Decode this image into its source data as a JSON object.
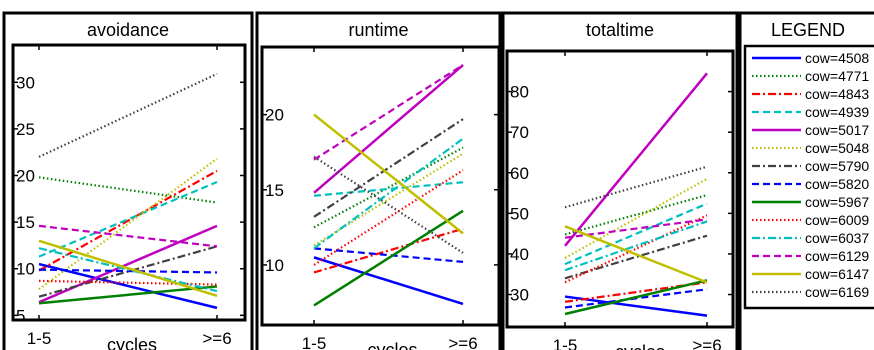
{
  "chart_data": [
    {
      "type": "line",
      "title": "avoidance",
      "xlabel": "cycles",
      "ylabel": "",
      "categories": [
        "1-5",
        ">=6"
      ],
      "ylim": [
        4.5,
        34
      ],
      "yticks": [
        5,
        10,
        15,
        20,
        25,
        30
      ],
      "series": [
        {
          "name": "cow=4508",
          "values": [
            10.5,
            5.8
          ]
        },
        {
          "name": "cow=4771",
          "values": [
            19.8,
            17.1
          ]
        },
        {
          "name": "cow=4843",
          "values": [
            9.8,
            20.5
          ]
        },
        {
          "name": "cow=4939",
          "values": [
            11.3,
            19.3
          ]
        },
        {
          "name": "cow=5017",
          "values": [
            6.4,
            14.6
          ]
        },
        {
          "name": "cow=5048",
          "values": [
            7.8,
            21.8
          ]
        },
        {
          "name": "cow=5790",
          "values": [
            7.0,
            12.4
          ]
        },
        {
          "name": "cow=5820",
          "values": [
            9.9,
            9.6
          ]
        },
        {
          "name": "cow=5967",
          "values": [
            6.3,
            8.1
          ]
        },
        {
          "name": "cow=6009",
          "values": [
            8.7,
            8.3
          ]
        },
        {
          "name": "cow=6037",
          "values": [
            12.2,
            7.6
          ]
        },
        {
          "name": "cow=6129",
          "values": [
            14.6,
            12.4
          ]
        },
        {
          "name": "cow=6147",
          "values": [
            13.0,
            7.1
          ]
        },
        {
          "name": "cow=6169",
          "values": [
            22.0,
            30.9
          ]
        }
      ]
    },
    {
      "type": "line",
      "title": "runtime",
      "xlabel": "cycles",
      "ylabel": "",
      "categories": [
        "1-5",
        ">=6"
      ],
      "ylim": [
        6,
        24.5
      ],
      "yticks": [
        10,
        15,
        20
      ],
      "series": [
        {
          "name": "cow=4508",
          "values": [
            10.5,
            7.4
          ]
        },
        {
          "name": "cow=4771",
          "values": [
            12.5,
            17.8
          ]
        },
        {
          "name": "cow=4843",
          "values": [
            9.5,
            12.4
          ]
        },
        {
          "name": "cow=4939",
          "values": [
            14.6,
            15.5
          ]
        },
        {
          "name": "cow=5017",
          "values": [
            14.8,
            23.3
          ]
        },
        {
          "name": "cow=5048",
          "values": [
            11.3,
            17.4
          ]
        },
        {
          "name": "cow=5790",
          "values": [
            13.2,
            19.7
          ]
        },
        {
          "name": "cow=5820",
          "values": [
            11.1,
            10.2
          ]
        },
        {
          "name": "cow=5967",
          "values": [
            7.3,
            13.6
          ]
        },
        {
          "name": "cow=6009",
          "values": [
            10.0,
            16.3
          ]
        },
        {
          "name": "cow=6037",
          "values": [
            11.1,
            18.4
          ]
        },
        {
          "name": "cow=6129",
          "values": [
            17.0,
            23.3
          ]
        },
        {
          "name": "cow=6147",
          "values": [
            20.0,
            12.1
          ]
        },
        {
          "name": "cow=6169",
          "values": [
            17.2,
            10.8
          ]
        }
      ]
    },
    {
      "type": "line",
      "title": "totaltime",
      "xlabel": "cycles",
      "ylabel": "",
      "categories": [
        "1-5",
        ">=6"
      ],
      "ylim": [
        22,
        90
      ],
      "yticks": [
        30,
        40,
        50,
        60,
        70,
        80
      ],
      "series": [
        {
          "name": "cow=4508",
          "values": [
            29.5,
            24.8
          ]
        },
        {
          "name": "cow=4771",
          "values": [
            44.8,
            54.5
          ]
        },
        {
          "name": "cow=4843",
          "values": [
            28.2,
            33.0
          ]
        },
        {
          "name": "cow=4939",
          "values": [
            37.5,
            52.4
          ]
        },
        {
          "name": "cow=5017",
          "values": [
            42.0,
            84.5
          ]
        },
        {
          "name": "cow=5048",
          "values": [
            39.0,
            58.5
          ]
        },
        {
          "name": "cow=5790",
          "values": [
            34.0,
            44.5
          ]
        },
        {
          "name": "cow=5820",
          "values": [
            26.8,
            31.3
          ]
        },
        {
          "name": "cow=5967",
          "values": [
            25.2,
            33.5
          ]
        },
        {
          "name": "cow=6009",
          "values": [
            33.0,
            49.5
          ]
        },
        {
          "name": "cow=6037",
          "values": [
            36.0,
            48.0
          ]
        },
        {
          "name": "cow=6129",
          "values": [
            44.0,
            48.5
          ]
        },
        {
          "name": "cow=6147",
          "values": [
            46.8,
            33.0
          ]
        },
        {
          "name": "cow=6169",
          "values": [
            51.5,
            61.5
          ]
        }
      ]
    }
  ],
  "legend": {
    "title": "LEGEND",
    "entries": [
      {
        "label": "cow=4508",
        "color": "#0000ff",
        "style": "solid"
      },
      {
        "label": "cow=4771",
        "color": "#008000",
        "style": "dotted"
      },
      {
        "label": "cow=4843",
        "color": "#ff0000",
        "style": "dashdot"
      },
      {
        "label": "cow=4939",
        "color": "#00bfbf",
        "style": "dashed"
      },
      {
        "label": "cow=5017",
        "color": "#bf00bf",
        "style": "solid"
      },
      {
        "label": "cow=5048",
        "color": "#bfbf00",
        "style": "dotted"
      },
      {
        "label": "cow=5790",
        "color": "#404040",
        "style": "dashdot"
      },
      {
        "label": "cow=5820",
        "color": "#0000ff",
        "style": "dashed"
      },
      {
        "label": "cow=5967",
        "color": "#008000",
        "style": "solid"
      },
      {
        "label": "cow=6009",
        "color": "#ff0000",
        "style": "dotted"
      },
      {
        "label": "cow=6037",
        "color": "#00bfbf",
        "style": "dashdot"
      },
      {
        "label": "cow=6129",
        "color": "#bf00bf",
        "style": "dashed"
      },
      {
        "label": "cow=6147",
        "color": "#bfbf00",
        "style": "solid"
      },
      {
        "label": "cow=6169",
        "color": "#404040",
        "style": "dotted"
      }
    ]
  }
}
